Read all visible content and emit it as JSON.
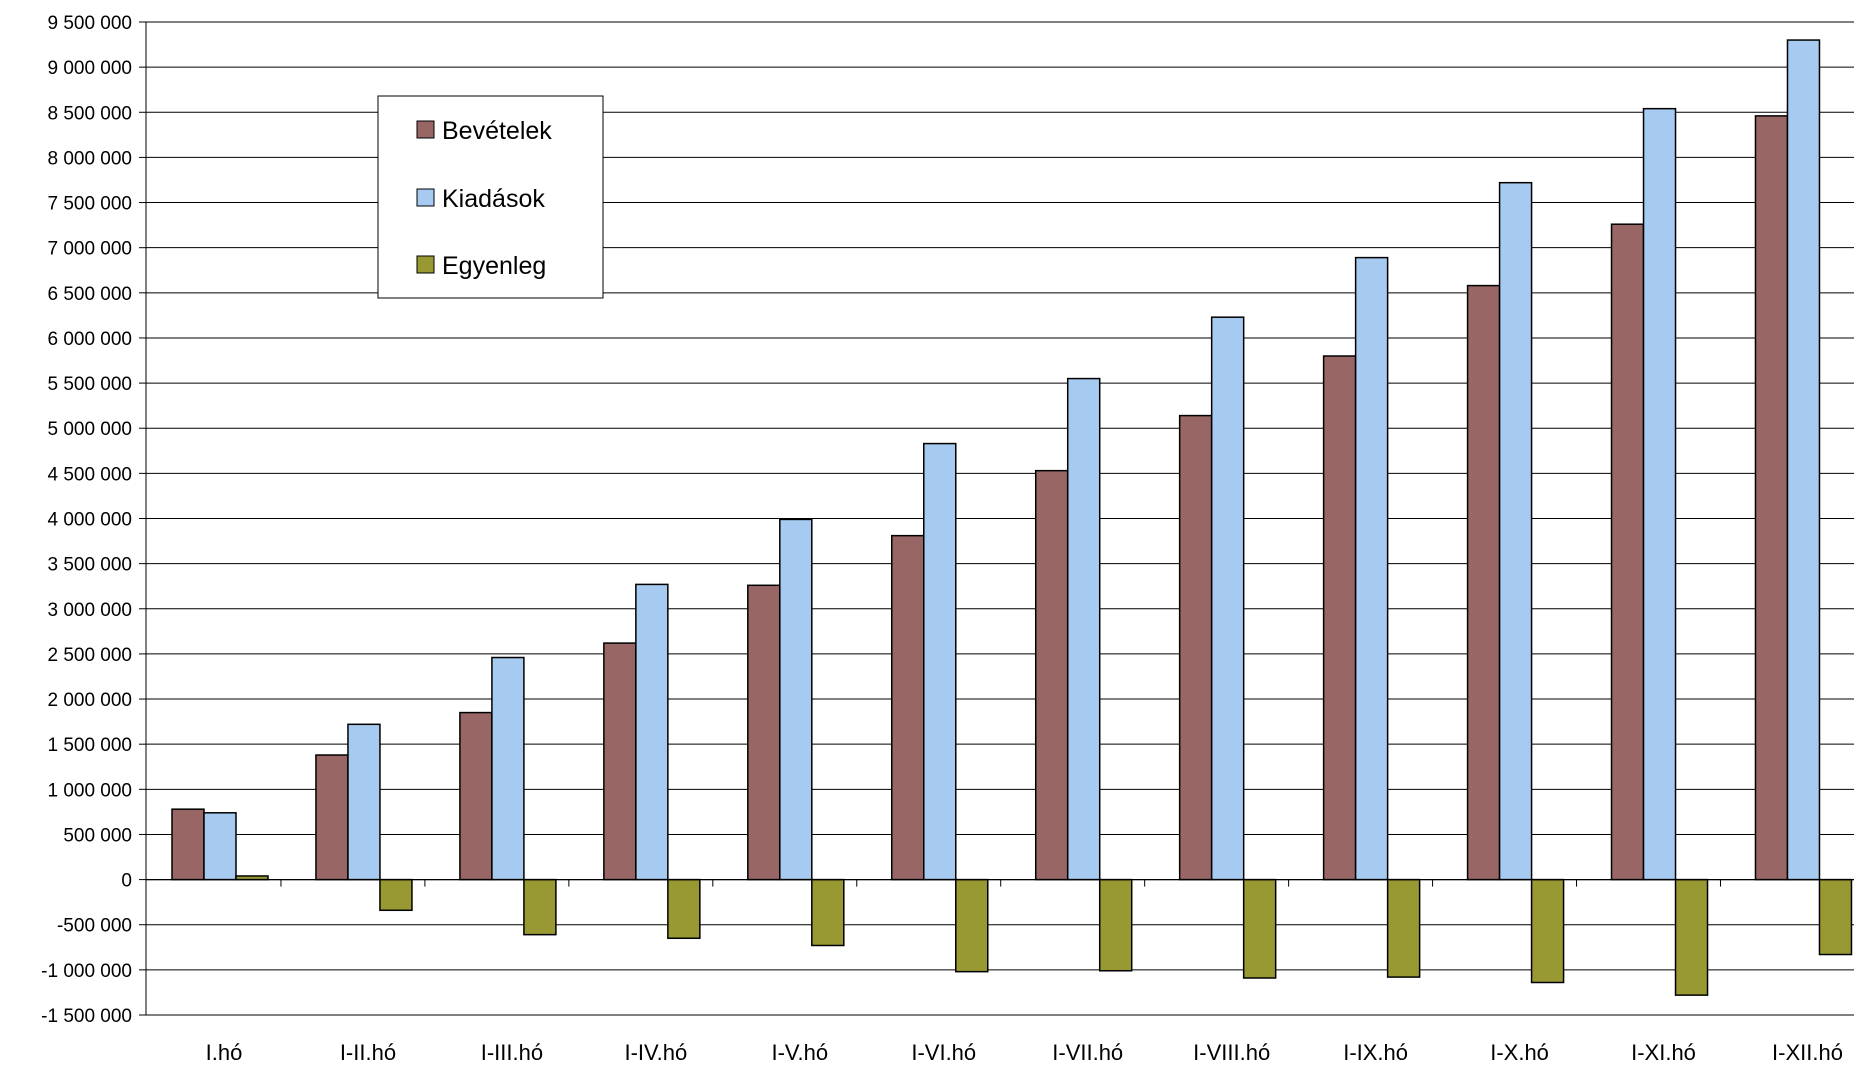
{
  "chart_data": {
    "type": "bar",
    "categories": [
      "I.hó",
      "I-II.hó",
      "I-III.hó",
      "I-IV.hó",
      "I-V.hó",
      "I-VI.hó",
      "I-VII.hó",
      "I-VIII.hó",
      "I-IX.hó",
      "I-X.hó",
      "I-XI.hó",
      "I-XII.hó"
    ],
    "series": [
      {
        "name": "Bevételek",
        "color": "#996666",
        "values": [
          780000,
          1380000,
          1850000,
          2620000,
          3260000,
          3810000,
          4530000,
          5140000,
          5800000,
          6580000,
          7260000,
          8460000
        ]
      },
      {
        "name": "Kiadások",
        "color": "#A6CAF0",
        "values": [
          740000,
          1720000,
          2460000,
          3270000,
          3990000,
          4830000,
          5550000,
          6230000,
          6890000,
          7720000,
          8540000,
          9300000
        ]
      },
      {
        "name": "Egyenleg",
        "color": "#999933",
        "values": [
          40000,
          -340000,
          -610000,
          -650000,
          -730000,
          -1020000,
          -1010000,
          -1090000,
          -1080000,
          -1140000,
          -1280000,
          -830000
        ]
      }
    ],
    "ylim": [
      -1500000,
      9500000
    ],
    "ytick_step": 500000,
    "yticks": [
      "9 500 000",
      "9 000 000",
      "8 500 000",
      "8 000 000",
      "7 500 000",
      "7 000 000",
      "6 500 000",
      "6 000 000",
      "5 500 000",
      "5 000 000",
      "4 500 000",
      "4 000 000",
      "3 500 000",
      "3 000 000",
      "2 500 000",
      "2 000 000",
      "1 500 000",
      "1 000 000",
      "500 000",
      "0",
      "-500 000",
      "-1 000 000",
      "-1 500 000"
    ],
    "grid": true,
    "legend_position": "top-left",
    "title": "",
    "xlabel": "",
    "ylabel": ""
  }
}
